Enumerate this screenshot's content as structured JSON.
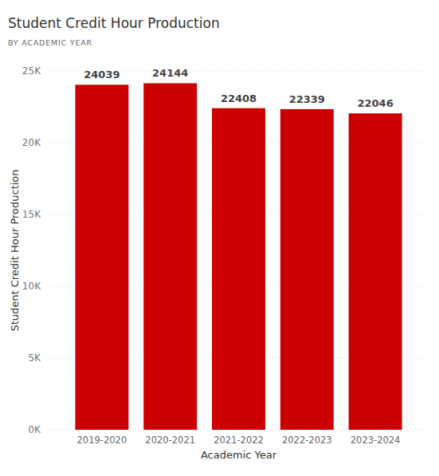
{
  "chart_data": {
    "type": "bar",
    "title": "Student Credit Hour Production",
    "subtitle": "BY ACADEMIC YEAR",
    "x_label": "Academic Year",
    "y_label": "Student Credit Hour Production",
    "categories": [
      "2019-2020",
      "2020-2021",
      "2021-2022",
      "2022-2023",
      "2023-2024"
    ],
    "values": [
      24039,
      24144,
      22408,
      22339,
      22046
    ],
    "color": "#cc0000",
    "ylim": [
      0,
      25000
    ],
    "yticks": [
      {
        "value": 0,
        "label": "0K"
      },
      {
        "value": 5000,
        "label": "5K"
      },
      {
        "value": 10000,
        "label": "10K"
      },
      {
        "value": 15000,
        "label": "15K"
      },
      {
        "value": 20000,
        "label": "20K"
      },
      {
        "value": 25000,
        "label": "25K"
      }
    ],
    "grid": true,
    "data_labels": true
  }
}
